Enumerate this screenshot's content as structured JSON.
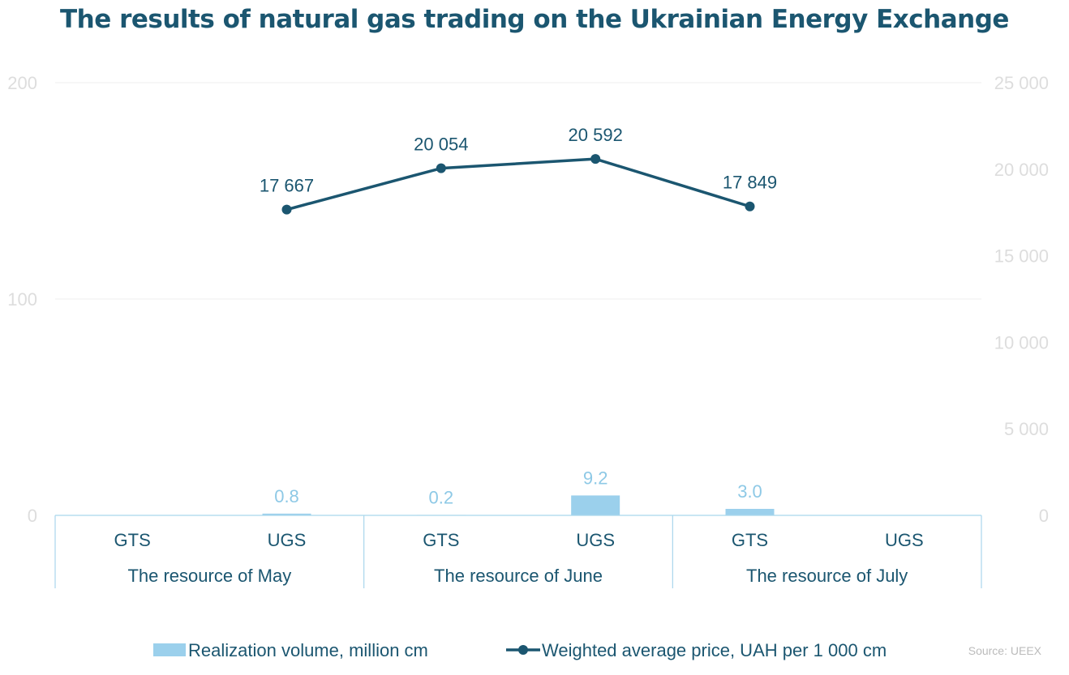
{
  "chart_data": {
    "type": "bar+line",
    "title": "The results of natural gas trading on the Ukrainian Energy Exchange",
    "categories": [
      "GTS",
      "UGS",
      "GTS",
      "UGS",
      "GTS",
      "UGS"
    ],
    "groups": [
      "The resource of May",
      "The resource of June",
      "The resource of July"
    ],
    "series": [
      {
        "name": "Realization volume, million cm",
        "type": "bar",
        "axis": "left",
        "values": [
          null,
          0.8,
          0.2,
          9.2,
          3.0,
          null
        ],
        "labels": [
          "",
          "0.8",
          "0.2",
          "9.2",
          "3.0",
          ""
        ]
      },
      {
        "name": "Weighted average price, UAH per 1 000 cm",
        "type": "line",
        "axis": "right",
        "values": [
          null,
          17667,
          20054,
          20592,
          17849,
          null
        ],
        "labels": [
          "",
          "17 667",
          "20 054",
          "20 592",
          "17 849",
          ""
        ]
      }
    ],
    "left_axis": {
      "ylim": [
        0,
        200
      ],
      "ticks": [
        "0",
        "100",
        "200"
      ]
    },
    "right_axis": {
      "ylim": [
        0,
        25000
      ],
      "ticks": [
        "0",
        "5 000",
        "10 000",
        "15 000",
        "20 000",
        "25 000"
      ]
    },
    "grid": true,
    "legend_position": "bottom",
    "colors": {
      "bar": "#9bd0ec",
      "line": "#1b5670",
      "title": "#1b5670",
      "ticks": "#dddddd"
    }
  },
  "source": "Source: UEEX"
}
